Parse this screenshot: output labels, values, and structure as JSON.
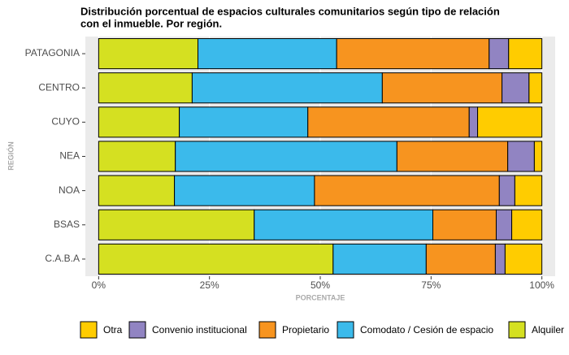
{
  "chart_data": {
    "type": "stacked-barh",
    "title": [
      "Distribución porcentual de espacios culturales comunitarios según tipo de relación",
      "con el inmueble. Por región."
    ],
    "x_label": "PORCENTAJE",
    "y_label": "REGIÓN",
    "categories": [
      "PATAGONIA",
      "CENTRO",
      "CUYO",
      "NEA",
      "NOA",
      "BSAS",
      "C.A.B.A"
    ],
    "series": [
      {
        "name": "Alquiler",
        "color": "#d5e021",
        "values": [
          22.4,
          21.1,
          18.2,
          17.3,
          17.1,
          35.1,
          52.9
        ]
      },
      {
        "name": "Comodato / Cesión de espacio",
        "color": "#3bbaeb",
        "values": [
          31.3,
          42.9,
          29.0,
          50.0,
          31.6,
          40.3,
          21.0
        ]
      },
      {
        "name": "Propietario",
        "color": "#f7941f",
        "values": [
          34.4,
          27.0,
          36.4,
          25.0,
          41.7,
          14.3,
          15.6
        ]
      },
      {
        "name": "Convenio institucional",
        "color": "#9184c2",
        "values": [
          4.4,
          6.1,
          1.9,
          6.0,
          3.5,
          3.5,
          2.2
        ]
      },
      {
        "name": "Otra",
        "color": "#ffcc00",
        "values": [
          7.5,
          2.9,
          14.5,
          1.7,
          6.1,
          6.8,
          8.3
        ]
      }
    ],
    "xlim": [
      -3,
      103
    ],
    "xticks": [
      {
        "value": 0,
        "label": "0%"
      },
      {
        "value": 25,
        "label": "25%"
      },
      {
        "value": 50,
        "label": "50%"
      },
      {
        "value": 75,
        "label": "75%"
      },
      {
        "value": 100,
        "label": "100%"
      }
    ],
    "grid": true,
    "legend": "bottom"
  }
}
